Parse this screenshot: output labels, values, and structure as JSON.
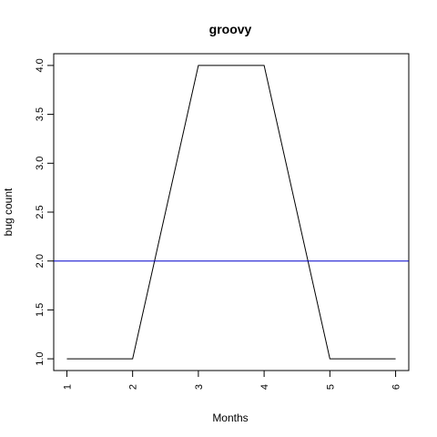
{
  "chart_data": {
    "type": "line",
    "title": "groovy",
    "xlabel": "Months",
    "ylabel": "bug count",
    "x": [
      1,
      2,
      3,
      4,
      5,
      6
    ],
    "series": [
      {
        "values": [
          1,
          1,
          4,
          4,
          1,
          1
        ],
        "color": "#000000"
      }
    ],
    "hline": {
      "y": 2.0,
      "color": "#0000cc"
    },
    "xticks": [
      1,
      2,
      3,
      4,
      5,
      6
    ],
    "xtick_labels": [
      "1",
      "2",
      "3",
      "4",
      "5",
      "6"
    ],
    "yticks": [
      1.0,
      1.5,
      2.0,
      2.5,
      3.0,
      3.5,
      4.0
    ],
    "ytick_labels": [
      "1.0",
      "1.5",
      "2.0",
      "2.5",
      "3.0",
      "3.5",
      "4.0"
    ],
    "xlim": [
      0.8,
      6.2
    ],
    "ylim": [
      0.88,
      4.12
    ],
    "grid": false,
    "legend": "none"
  }
}
